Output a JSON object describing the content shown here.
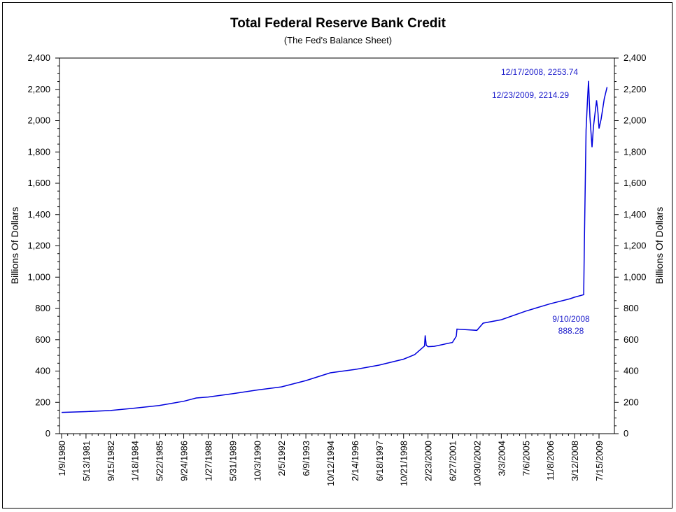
{
  "chart_data": {
    "type": "line",
    "title": "Total Federal Reserve Bank Credit",
    "subtitle": "(The Fed's Balance Sheet)",
    "ylabel": "Billions Of Dollars",
    "ylabel_right": "Billions Of Dollars",
    "xlabel": "",
    "ylim": [
      0,
      2400
    ],
    "yticks": [
      0,
      200,
      400,
      600,
      800,
      1000,
      1200,
      1400,
      1600,
      1800,
      2000,
      2200,
      2400
    ],
    "ytick_labels": [
      "0",
      "200",
      "400",
      "600",
      "800",
      "1,000",
      "1,200",
      "1,400",
      "1,600",
      "1,800",
      "2,000",
      "2,200",
      "2,400"
    ],
    "x_tick_labels": [
      "1/9/1980",
      "5/13/1981",
      "9/15/1982",
      "1/18/1984",
      "5/22/1985",
      "9/24/1986",
      "1/27/1988",
      "5/31/1989",
      "10/3/1990",
      "2/5/1992",
      "6/9/1993",
      "10/12/1994",
      "2/14/1996",
      "6/18/1997",
      "10/21/1998",
      "2/23/2000",
      "6/27/2001",
      "10/30/2002",
      "3/3/2004",
      "7/6/2005",
      "11/8/2006",
      "3/12/2008",
      "7/15/2009"
    ],
    "grid": false,
    "line_color": "#0000dd",
    "series": [
      {
        "x": [
          "1980-01-09",
          "1981-05-13",
          "1982-09-15",
          "1984-01-18",
          "1985-05-22",
          "1986-09-24",
          "1987-06-01",
          "1988-01-27",
          "1989-05-31",
          "1990-10-03",
          "1992-02-05",
          "1993-06-09",
          "1994-10-12",
          "1996-02-14",
          "1997-06-18",
          "1998-10-21",
          "1999-06-01",
          "1999-12-15",
          "1999-12-29",
          "2000-01-19",
          "2000-02-23",
          "2000-06-28",
          "2001-06-27",
          "2001-09-12",
          "2001-09-26",
          "2002-10-30",
          "2003-03-05",
          "2004-03-03",
          "2005-07-06",
          "2006-11-08",
          "2007-12-12",
          "2008-03-12",
          "2008-09-10",
          "2008-09-24",
          "2008-10-29",
          "2008-11-26",
          "2008-12-17",
          "2009-01-14",
          "2009-02-25",
          "2009-03-25",
          "2009-05-27",
          "2009-06-24",
          "2009-07-15",
          "2009-08-26",
          "2009-10-28",
          "2009-12-23"
        ],
        "values": [
          136,
          141,
          148,
          163,
          180,
          207,
          228,
          234,
          255,
          279,
          299,
          339,
          389,
          410,
          438,
          476,
          505,
          560,
          628,
          565,
          556,
          558,
          583,
          622,
          668,
          660,
          706,
          728,
          783,
          830,
          862,
          872,
          888,
          1230,
          1940,
          2130,
          2253.74,
          2025,
          1830,
          1960,
          2130,
          2050,
          1950,
          2010,
          2140,
          2214.29
        ]
      }
    ],
    "annotations": [
      {
        "text": "12/17/2008, 2253.74"
      },
      {
        "text": "12/23/2009, 2214.29"
      },
      {
        "text": "9/10/2008"
      },
      {
        "text": "888.28"
      }
    ]
  }
}
